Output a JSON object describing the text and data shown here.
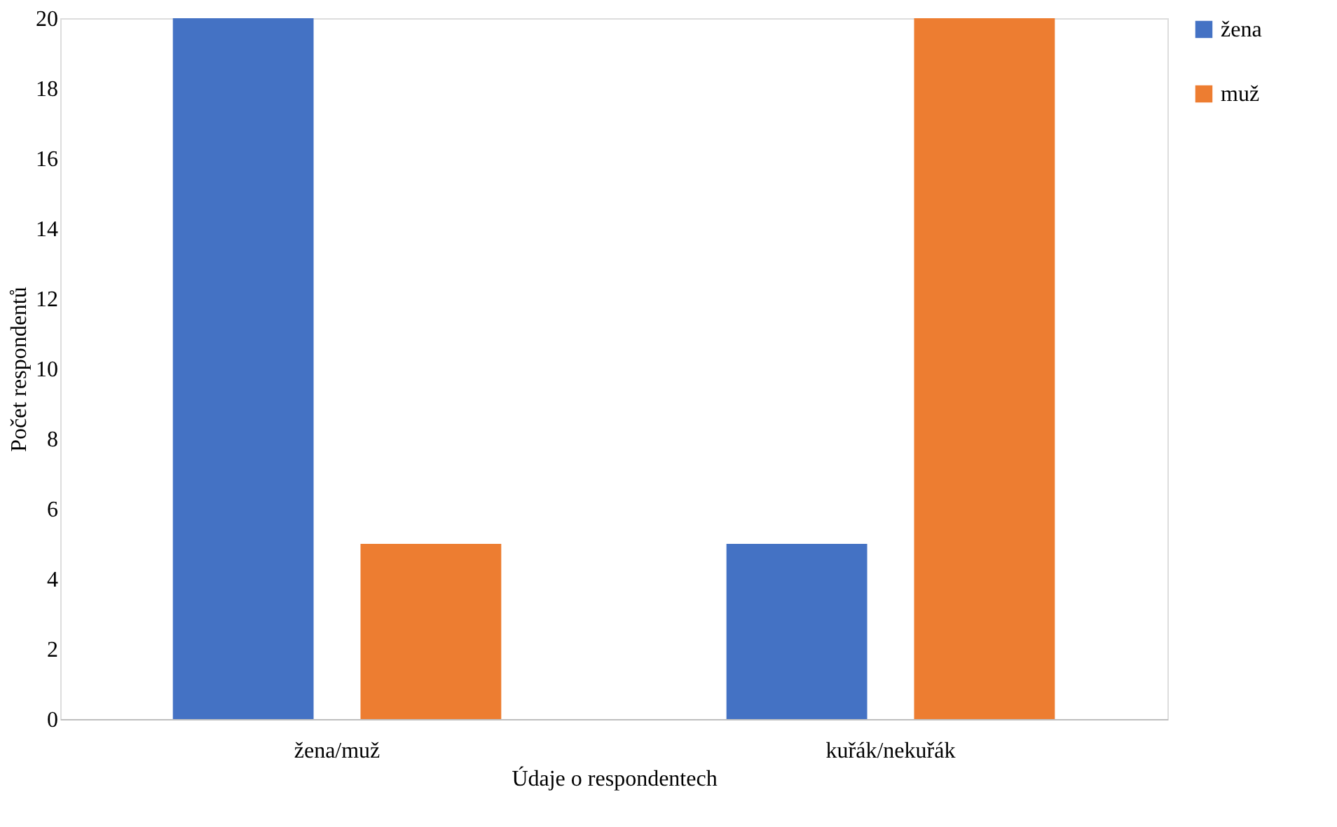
{
  "chart_data": {
    "type": "bar",
    "xlabel": "Údaje o respondentech",
    "ylabel": "Počet respondentů",
    "categories": [
      "žena/muž",
      "kuřák/nekuřák"
    ],
    "series": [
      {
        "name": "žena",
        "color": "#4472c4",
        "values": [
          20,
          5
        ]
      },
      {
        "name": "muž",
        "color": "#ed7d31",
        "values": [
          5,
          20
        ]
      }
    ],
    "ylim": [
      0,
      20
    ],
    "yticks": [
      0,
      2,
      4,
      6,
      8,
      10,
      12,
      14,
      16,
      18,
      20
    ],
    "grid": false,
    "legend": "right"
  }
}
